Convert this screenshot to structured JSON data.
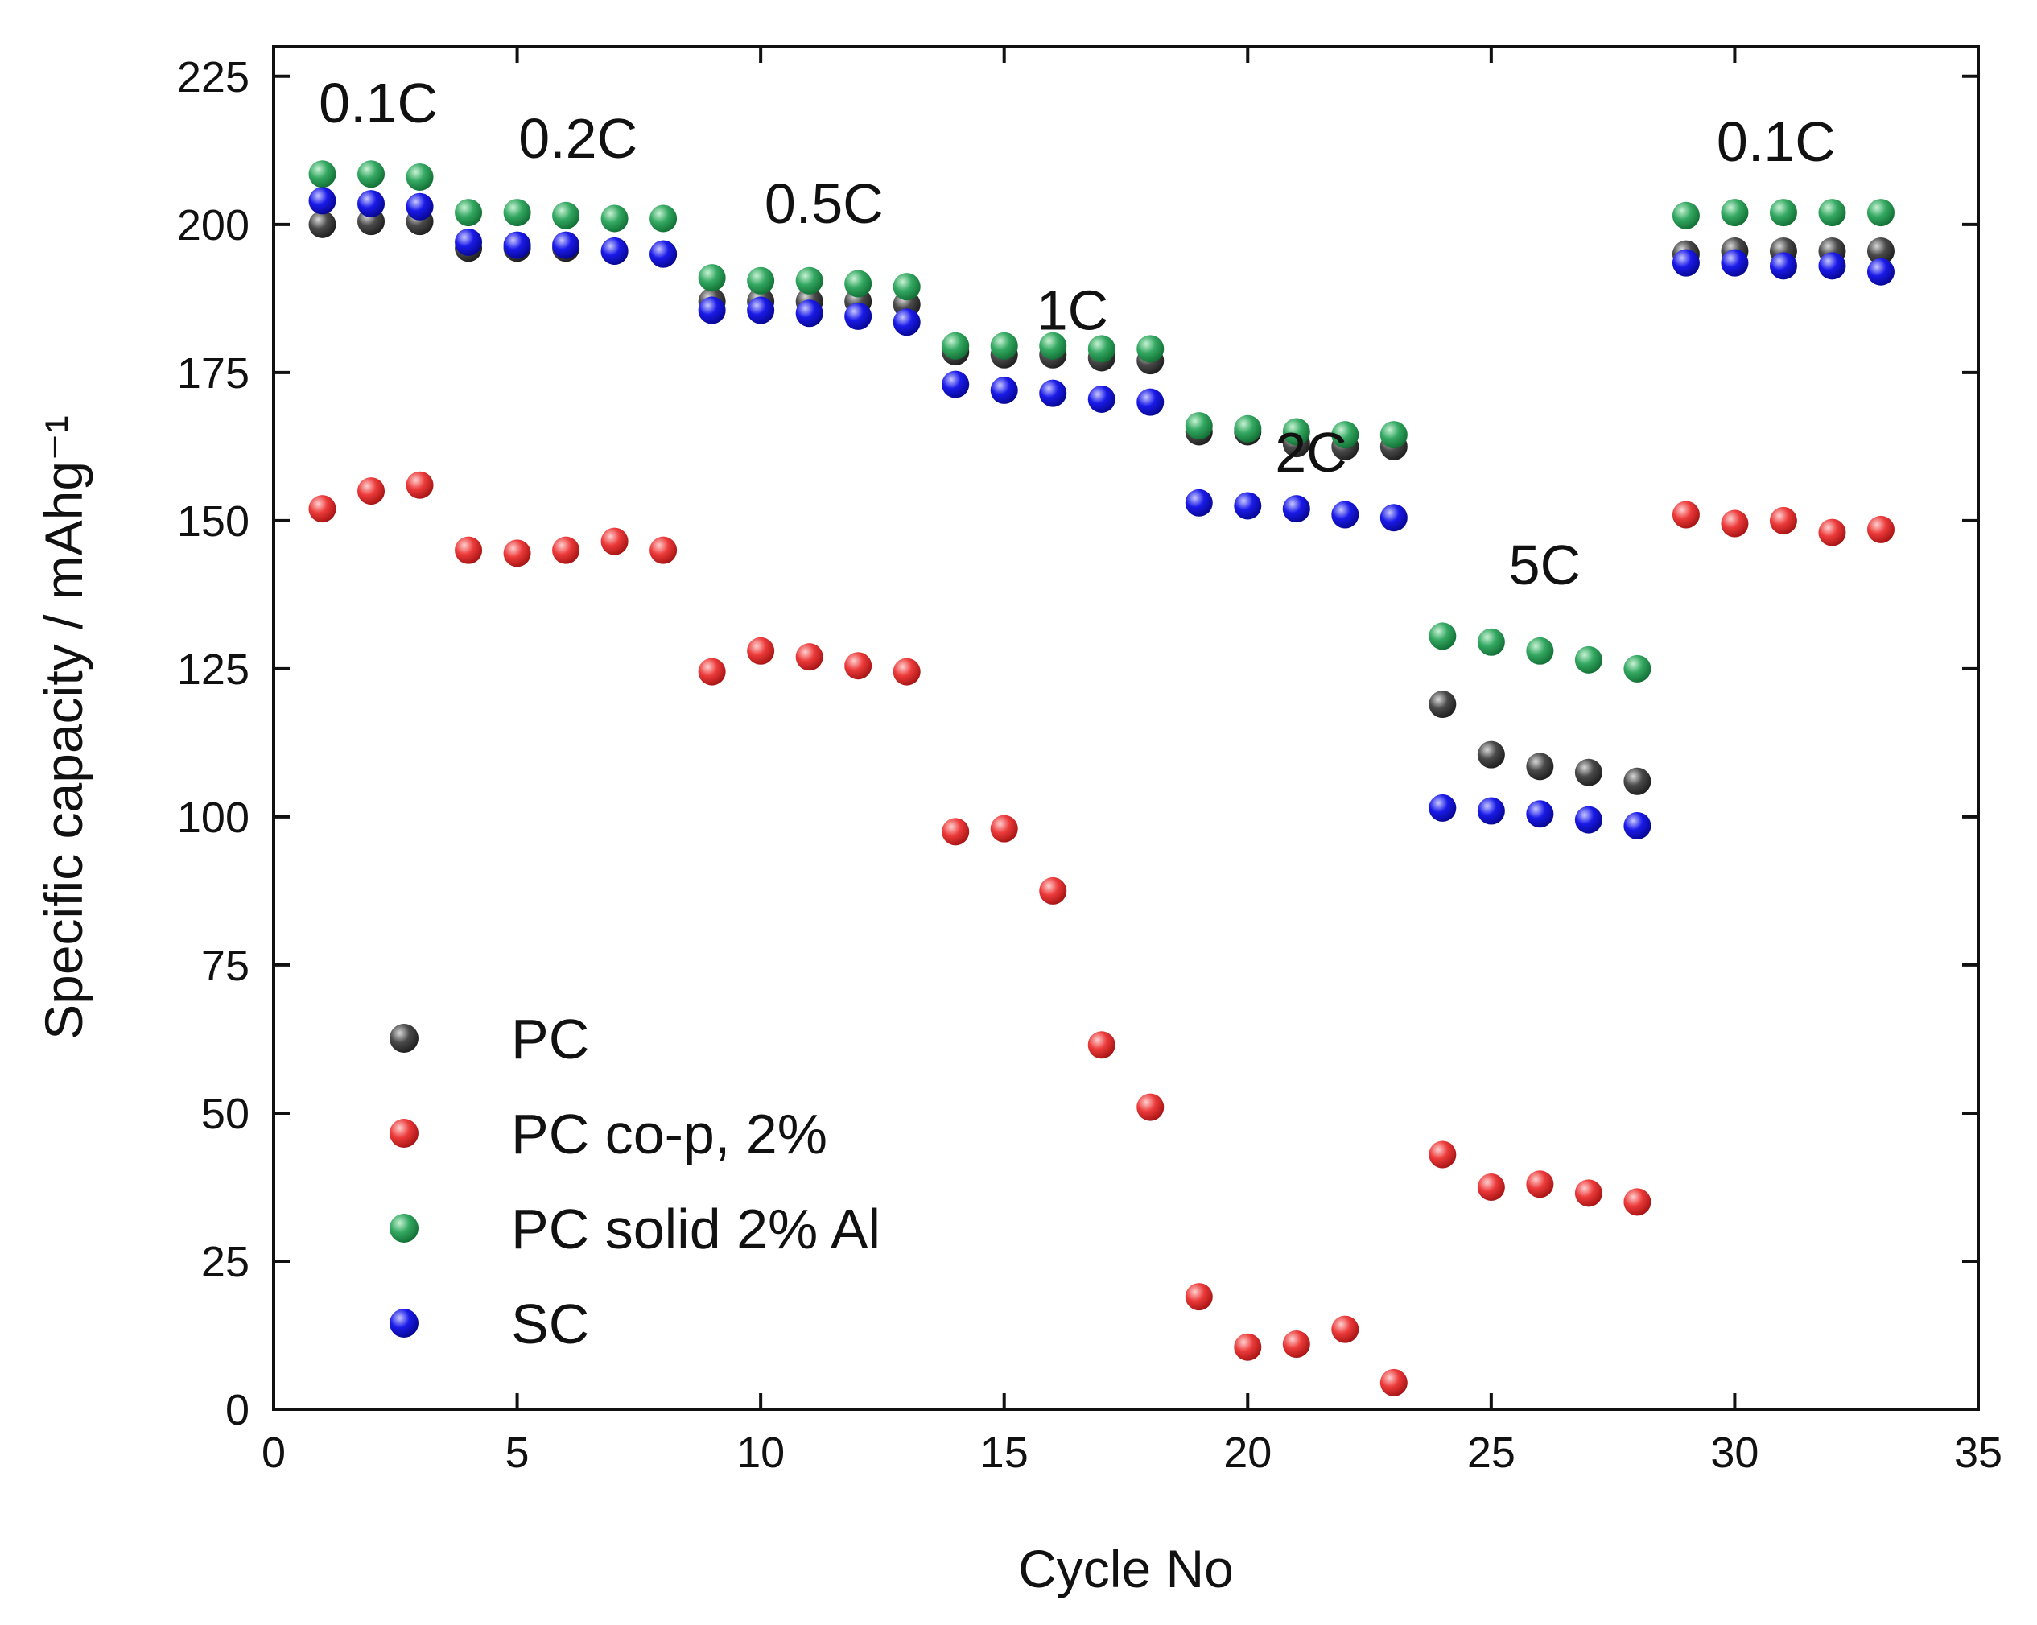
{
  "chart_data": {
    "type": "scatter",
    "title": "",
    "xlabel": "Cycle No",
    "ylabel": "Specific capacity / mAhg⁻¹",
    "xlim": [
      0,
      35
    ],
    "ylim": [
      0,
      230
    ],
    "xticks": [
      0,
      5,
      10,
      15,
      20,
      25,
      30,
      35
    ],
    "yticks": [
      0,
      25,
      50,
      75,
      100,
      125,
      150,
      175,
      200,
      225
    ],
    "legend_position": "bottom-left",
    "series": [
      {
        "name": "PC",
        "color": "#3a3a3a",
        "x": [
          1,
          2,
          3,
          4,
          5,
          6,
          7,
          8,
          9,
          10,
          11,
          12,
          13,
          14,
          15,
          16,
          17,
          18,
          19,
          20,
          21,
          22,
          23,
          24,
          25,
          26,
          27,
          28,
          29,
          30,
          31,
          32,
          33
        ],
        "y": [
          200,
          200.5,
          200.5,
          196,
          196,
          196,
          195.5,
          195,
          187,
          187,
          187,
          187,
          186.5,
          178.5,
          178,
          178,
          177.5,
          177,
          165,
          165,
          163,
          162.5,
          162.5,
          119,
          110.5,
          108.5,
          107.5,
          106,
          195,
          195.5,
          195.5,
          195.5,
          195.5
        ]
      },
      {
        "name": "PC co-p, 2%",
        "color": "#e03030",
        "x": [
          1,
          2,
          3,
          4,
          5,
          6,
          7,
          8,
          9,
          10,
          11,
          12,
          13,
          14,
          15,
          16,
          17,
          18,
          19,
          20,
          21,
          22,
          23,
          24,
          25,
          26,
          27,
          28,
          29,
          30,
          31,
          32,
          33
        ],
        "y": [
          152,
          155,
          156,
          145,
          144.5,
          145,
          146.5,
          145,
          124.5,
          128,
          127,
          125.5,
          124.5,
          97.5,
          98,
          87.5,
          61.5,
          51,
          19,
          10.5,
          11,
          13.5,
          4.5,
          43,
          37.5,
          38,
          36.5,
          35,
          151,
          149.5,
          150,
          148,
          148.5
        ]
      },
      {
        "name": "PC solid 2% Al",
        "color": "#2e9a58",
        "x": [
          1,
          2,
          3,
          4,
          5,
          6,
          7,
          8,
          9,
          10,
          11,
          12,
          13,
          14,
          15,
          16,
          17,
          18,
          19,
          20,
          21,
          22,
          23,
          24,
          25,
          26,
          27,
          28,
          29,
          30,
          31,
          32,
          33
        ],
        "y": [
          208.5,
          208.5,
          208,
          202,
          202,
          201.5,
          201,
          201,
          191,
          190.5,
          190.5,
          190,
          189.5,
          179.5,
          179.5,
          179.5,
          179,
          179,
          166,
          165.5,
          165,
          164.5,
          164.5,
          130.5,
          129.5,
          128,
          126.5,
          125,
          201.5,
          202,
          202,
          202,
          202
        ]
      },
      {
        "name": "SC",
        "color": "#1515d8",
        "x": [
          1,
          2,
          3,
          4,
          5,
          6,
          7,
          8,
          9,
          10,
          11,
          12,
          13,
          14,
          15,
          16,
          17,
          18,
          19,
          20,
          21,
          22,
          23,
          24,
          25,
          26,
          27,
          28,
          29,
          30,
          31,
          32,
          33
        ],
        "y": [
          204,
          203.5,
          203,
          197,
          196.5,
          196.5,
          195.5,
          195,
          185.5,
          185.5,
          185,
          184.5,
          183.5,
          173,
          172,
          171.5,
          170.5,
          170,
          153,
          152.5,
          152,
          151,
          150.5,
          101.5,
          101,
          100.5,
          99.5,
          98.5,
          193.5,
          193.5,
          193,
          193,
          192
        ]
      }
    ],
    "annotations": [
      {
        "text": "0.1C",
        "x": 2.15,
        "y": 220.5
      },
      {
        "text": "0.2C",
        "x": 6.25,
        "y": 214.5
      },
      {
        "text": "0.5C",
        "x": 11.3,
        "y": 203.5
      },
      {
        "text": "1C",
        "x": 16.4,
        "y": 185.5
      },
      {
        "text": "2C",
        "x": 21.3,
        "y": 161.5
      },
      {
        "text": "5C",
        "x": 26.1,
        "y": 142.5
      },
      {
        "text": "0.1C",
        "x": 30.85,
        "y": 214
      }
    ]
  }
}
